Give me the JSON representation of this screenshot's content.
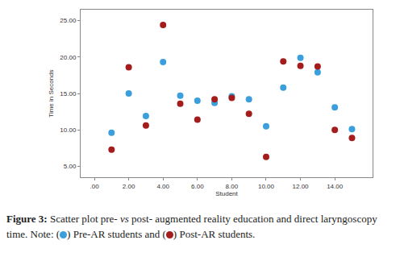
{
  "chart_data": {
    "type": "scatter",
    "x_label": "Student",
    "y_label": "Time in Seconds",
    "x": [
      1,
      2,
      3,
      4,
      5,
      6,
      7,
      8,
      9,
      10,
      11,
      12,
      13,
      14,
      15
    ],
    "series": [
      {
        "color": "#3a9fdc",
        "marker": "circle",
        "values": [
          9.6,
          15.0,
          11.9,
          19.3,
          14.7,
          14.0,
          13.7,
          14.6,
          14.2,
          10.5,
          15.8,
          19.9,
          17.9,
          13.1,
          10.1
        ]
      },
      {
        "color": "#a51c1c",
        "marker": "circle",
        "values": [
          7.3,
          18.6,
          10.6,
          24.4,
          13.6,
          11.4,
          14.2,
          14.4,
          12.2,
          6.3,
          19.4,
          18.8,
          18.7,
          10.0,
          8.9
        ]
      }
    ],
    "xlim": [
      -0.8,
      16.2
    ],
    "xticks": [
      {
        "value": 0,
        "label": ".00"
      },
      {
        "value": 2,
        "label": "2.00"
      },
      {
        "value": 4,
        "label": "4.00"
      },
      {
        "value": 6,
        "label": "6.00"
      },
      {
        "value": 8,
        "label": "8.00"
      },
      {
        "value": 10,
        "label": "10.00"
      },
      {
        "value": 12,
        "label": "12.00"
      },
      {
        "value": 14,
        "label": "14.00"
      }
    ],
    "ylim": [
      3.5,
      26.5
    ],
    "yticks": [
      {
        "value": 5,
        "label": "5.00"
      },
      {
        "value": 10,
        "label": "10.00"
      },
      {
        "value": 15,
        "label": "15.00"
      },
      {
        "value": 20,
        "label": "20.00"
      },
      {
        "value": 25,
        "label": "25.00"
      }
    ],
    "grid": false
  },
  "caption": {
    "label": "Figure 3:",
    "text": [
      "Scatter plot pre-",
      "vs",
      "post- augmented reality education and direct laryngoscopy time. Note: (",
      ") Pre-AR students and (",
      ") Post-AR students."
    ]
  }
}
